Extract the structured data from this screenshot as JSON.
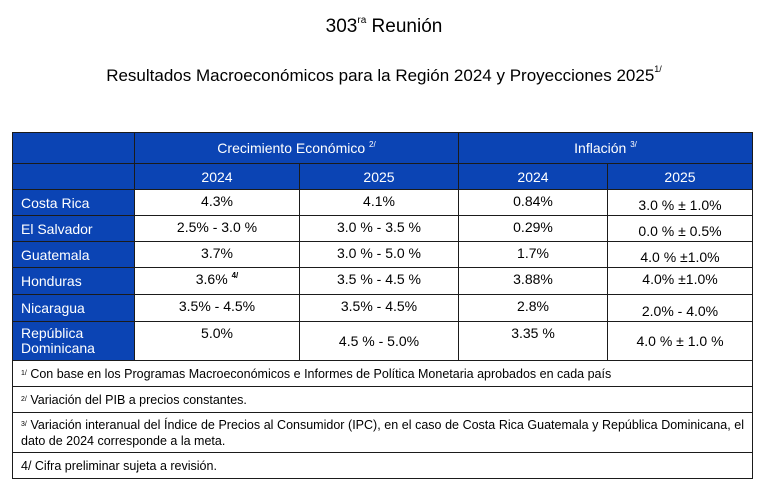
{
  "header": {
    "meeting_number": "303",
    "meeting_suffix": "ra",
    "meeting_word": "Reunión",
    "title_text": "Resultados Macroeconómicos para la Región 2024 y Proyecciones 2025",
    "title_ref": "1/"
  },
  "table": {
    "groups": [
      {
        "label": "Crecimiento Económico",
        "ref": "2/"
      },
      {
        "label": "Inflación",
        "ref": "3/"
      }
    ],
    "years": [
      "2024",
      "2025",
      "2024",
      "2025"
    ],
    "rows": [
      {
        "country": "Costa Rica",
        "values": [
          "4.3%",
          "4.1%",
          "0.84%",
          "3.0 % ± 1.0%"
        ]
      },
      {
        "country": "El Salvador",
        "values": [
          "2.5% - 3.0 %",
          "3.0 % - 3.5 %",
          "0.29%",
          "0.0 % ± 0.5%"
        ]
      },
      {
        "country": "Guatemala",
        "values": [
          "3.7%",
          "3.0 % - 5.0 %",
          "1.7%",
          "4.0 % ±1.0%"
        ]
      },
      {
        "country": "Honduras",
        "values": [
          "3.6%",
          "3.5 % - 4.5 %",
          "3.88%",
          "4.0% ±1.0%"
        ],
        "value0_ref": "4/"
      },
      {
        "country": "Nicaragua",
        "values": [
          "3.5% - 4.5%",
          "3.5% - 4.5%",
          "2.8%",
          "2.0% - 4.0%"
        ]
      },
      {
        "country_line1": "República",
        "country_line2": "Dominicana",
        "values": [
          "5.0%",
          "4.5 % - 5.0%",
          "3.35 %",
          "4.0 % ± 1.0 %"
        ]
      }
    ],
    "notes": [
      {
        "ref": "1/",
        "text": "Con base en los Programas Macroeconómicos e Informes de Política Monetaria aprobados en cada país"
      },
      {
        "ref": "2/",
        "text": "Variación del PIB a precios constantes."
      },
      {
        "ref": "3/",
        "text": "Variación interanual del Índice de Precios al Consumidor (IPC), en el caso de Costa Rica Guatemala y República Dominicana, el dato de 2024 corresponde a la meta."
      },
      {
        "ref": "",
        "text": "4/ Cifra preliminar sujeta a revisión."
      }
    ]
  },
  "colors": {
    "header_blue": "#0b44b4",
    "header_text": "#ffffff",
    "border": "#1b1b1b"
  }
}
